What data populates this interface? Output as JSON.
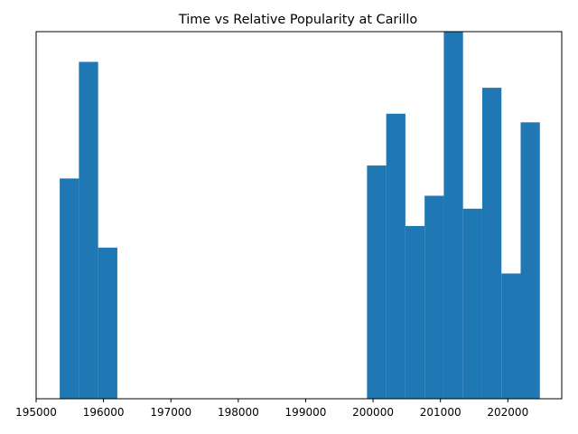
{
  "chart_data": {
    "type": "bar",
    "title": "Time vs Relative Popularity at Carillo",
    "xlabel": "",
    "ylabel": "",
    "xlim": [
      195000,
      202800
    ],
    "ylim": [
      0,
      85
    ],
    "x_ticks": [
      {
        "value": 195000,
        "label": "195000"
      },
      {
        "value": 196000,
        "label": "196000"
      },
      {
        "value": 197000,
        "label": "197000"
      },
      {
        "value": 198000,
        "label": "198000"
      },
      {
        "value": 199000,
        "label": "199000"
      },
      {
        "value": 200000,
        "label": "200000"
      },
      {
        "value": 201000,
        "label": "201000"
      },
      {
        "value": 202000,
        "label": "202000"
      }
    ],
    "bar_width": 285,
    "bars": [
      {
        "x_start": 195350,
        "height": 51
      },
      {
        "x_start": 195635,
        "height": 78
      },
      {
        "x_start": 195920,
        "height": 35
      },
      {
        "x_start": 199910,
        "height": 54
      },
      {
        "x_start": 200195,
        "height": 66
      },
      {
        "x_start": 200480,
        "height": 40
      },
      {
        "x_start": 200765,
        "height": 47
      },
      {
        "x_start": 201050,
        "height": 86
      },
      {
        "x_start": 201335,
        "height": 44
      },
      {
        "x_start": 201620,
        "height": 72
      },
      {
        "x_start": 201905,
        "height": 29
      },
      {
        "x_start": 202190,
        "height": 64
      }
    ],
    "bar_color": "#1f77b4",
    "grid": false,
    "legend": "none"
  }
}
